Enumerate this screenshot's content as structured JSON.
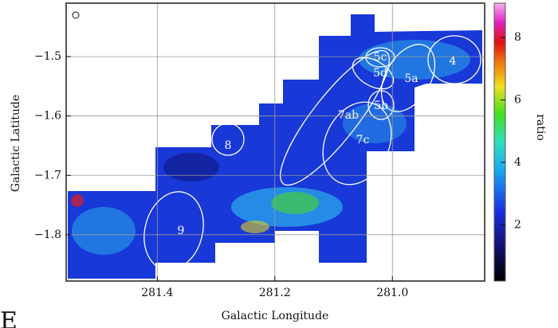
{
  "chart_data": {
    "type": "map",
    "xlabel": "Galactic Longitude",
    "ylabel": "Galactic Latitude",
    "xlim": [
      281.555,
      280.843
    ],
    "xticks": [
      281.4,
      281.2,
      {
        "value": 281,
        "label": "281.0"
      }
    ],
    "ylim": [
      -1.878,
      -1.41
    ],
    "yticks": [
      {
        "value": -1.5,
        "label": "−1.5"
      },
      {
        "value": -1.6,
        "label": "−1.6"
      },
      {
        "value": -1.7,
        "label": "−1.7"
      },
      {
        "value": -1.8,
        "label": "−1.8"
      }
    ],
    "grid": true,
    "colorbar": {
      "label": "ratio",
      "lim": [
        0.2,
        9.1
      ],
      "ticks": [
        2,
        4,
        6,
        8
      ]
    },
    "regions": [
      "4",
      "5c",
      "5d",
      "5a",
      "5b",
      "7ab",
      "7c",
      "8",
      "9"
    ],
    "panel_letter": "E"
  }
}
